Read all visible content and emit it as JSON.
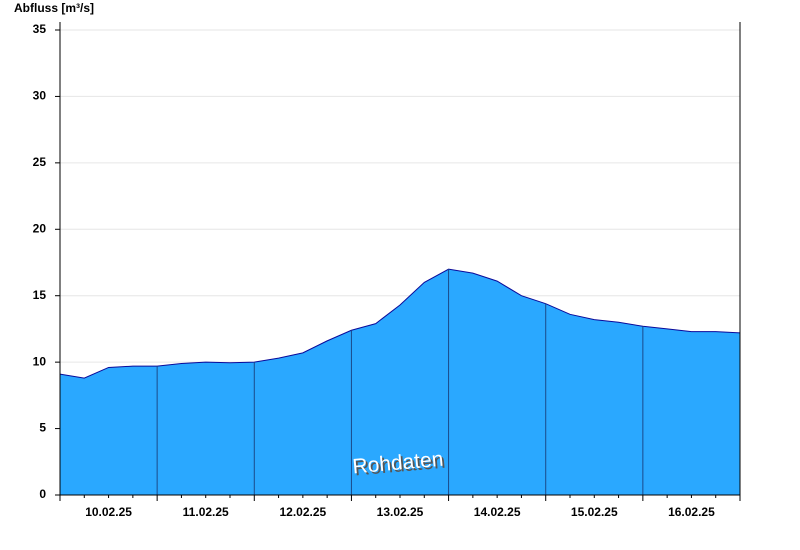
{
  "chart_data": {
    "type": "area",
    "y_label": "Abfluss [m³/s]",
    "annotation": "Rohdaten",
    "categories": [
      null,
      null,
      "10.02.25",
      null,
      null,
      null,
      "11.02.25",
      null,
      null,
      null,
      "12.02.25",
      null,
      null,
      null,
      "13.02.25",
      null,
      null,
      null,
      "14.02.25",
      null,
      null,
      null,
      "15.02.25",
      null,
      null,
      null,
      "16.02.25",
      null,
      null
    ],
    "values": [
      9.1,
      8.8,
      9.6,
      9.7,
      9.7,
      9.9,
      10.0,
      9.95,
      10.0,
      10.3,
      10.7,
      11.6,
      12.4,
      12.9,
      14.3,
      16.0,
      17.0,
      16.7,
      16.1,
      15.0,
      14.4,
      13.6,
      13.2,
      13.0,
      12.7,
      12.5,
      12.3,
      12.3,
      12.2
    ],
    "color": "#2aa8ff",
    "line_color": "#0a0a9a",
    "ylim": [
      0,
      35
    ],
    "yticks": [
      0,
      5,
      10,
      15,
      20,
      25,
      30,
      35
    ],
    "grid": true
  }
}
